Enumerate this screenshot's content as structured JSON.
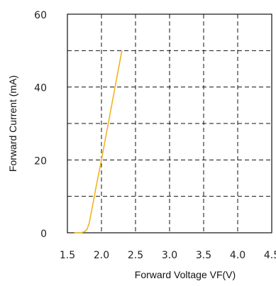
{
  "chart_data": {
    "type": "line",
    "title": "",
    "xlabel": "Forward Voltage  VF(V)",
    "ylabel": "Forward Current (mA)",
    "xlim": [
      1.5,
      4.5
    ],
    "ylim": [
      0,
      60
    ],
    "xticks": [
      "1.5",
      "2.0",
      "2.5",
      "3.0",
      "3.5",
      "4.0",
      "4.5"
    ],
    "yticks": [
      "0",
      "20",
      "40",
      "60"
    ],
    "grid": true,
    "grid_step_x": 0.5,
    "grid_step_y": 10,
    "series": [
      {
        "color": "#f2b320",
        "x": [
          1.6,
          1.7,
          1.75,
          1.79,
          1.82,
          1.86,
          1.92,
          2.0,
          2.07,
          2.15,
          2.22,
          2.3
        ],
        "y": [
          0,
          0,
          0.3,
          1.0,
          2.6,
          6.5,
          12.5,
          20,
          27,
          35,
          42,
          50
        ]
      }
    ]
  }
}
